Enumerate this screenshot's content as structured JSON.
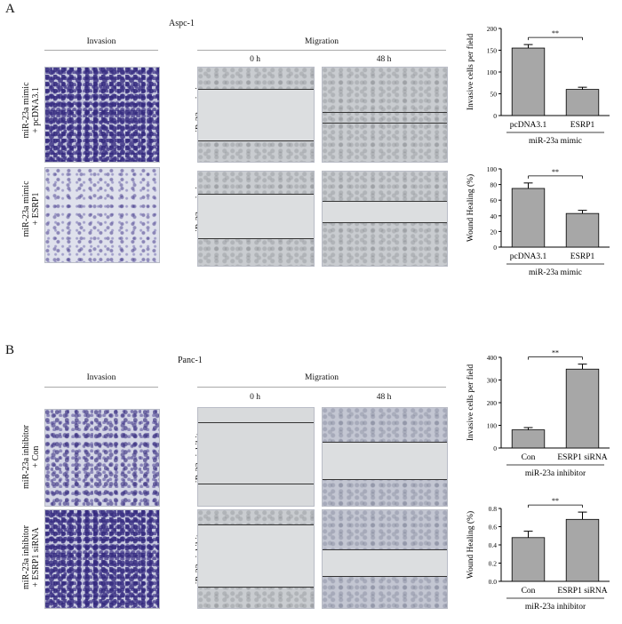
{
  "panels": [
    {
      "letter": "A",
      "cell_line": "Aspc-1",
      "invasion_header": "Invasion",
      "migration_header": "Migration",
      "time_labels": [
        "0 h",
        "48 h"
      ],
      "rows": [
        {
          "line1": "miR-23a mimic",
          "line2": "+ pcDNA3.1"
        },
        {
          "line1": "miR-23a mimic",
          "line2": "+ ESRP1"
        }
      ]
    },
    {
      "letter": "B",
      "cell_line": "Panc-1",
      "invasion_header": "Invasion",
      "migration_header": "Migration",
      "time_labels": [
        "0 h",
        "48 h"
      ],
      "rows": [
        {
          "line1": "miR-23a inhibitor",
          "line2": "+ Con"
        },
        {
          "line1": "miR-23a inhibitor",
          "line2": "+ ESRP1 siRNA"
        }
      ]
    }
  ],
  "chart_data": [
    {
      "type": "bar",
      "categories": [
        "pcDNA3.1",
        "ESRP1"
      ],
      "values": [
        155,
        60
      ],
      "errors": [
        8,
        5
      ],
      "ylabel": "Invasive cells per field",
      "xlabel": "miR-23a mimic",
      "ylim": [
        0,
        200
      ],
      "yticks": [
        0,
        50,
        100,
        150,
        200
      ],
      "significance": "**"
    },
    {
      "type": "bar",
      "categories": [
        "pcDNA3.1",
        "ESRP1"
      ],
      "values": [
        75,
        43
      ],
      "errors": [
        7,
        4
      ],
      "ylabel": "Wound Healing (%)",
      "xlabel": "miR-23a mimic",
      "ylim": [
        0,
        100
      ],
      "yticks": [
        0,
        20,
        40,
        60,
        80,
        100
      ],
      "significance": "**"
    },
    {
      "type": "bar",
      "categories": [
        "Con",
        "ESRP1 siRNA"
      ],
      "values": [
        80,
        348
      ],
      "errors": [
        10,
        22
      ],
      "ylabel": "Invasive cells per field",
      "xlabel": "miR-23a inhibitor",
      "ylim": [
        0,
        400
      ],
      "yticks": [
        0,
        100,
        200,
        300,
        400
      ],
      "significance": "**"
    },
    {
      "type": "bar",
      "categories": [
        "Con",
        "ESRP1 siRNA"
      ],
      "values": [
        0.48,
        0.68
      ],
      "errors": [
        0.07,
        0.08
      ],
      "ylabel": "Wound Healing (%)",
      "xlabel": "miR-23a inhibitor",
      "ylim": [
        0,
        0.8
      ],
      "yticks": [
        "0.0",
        "0.2",
        "0.4",
        "0.6",
        "0.8"
      ],
      "significance": "**"
    }
  ],
  "colors": {
    "bar_fill": "#a7a7a7",
    "axis": "#000000"
  }
}
